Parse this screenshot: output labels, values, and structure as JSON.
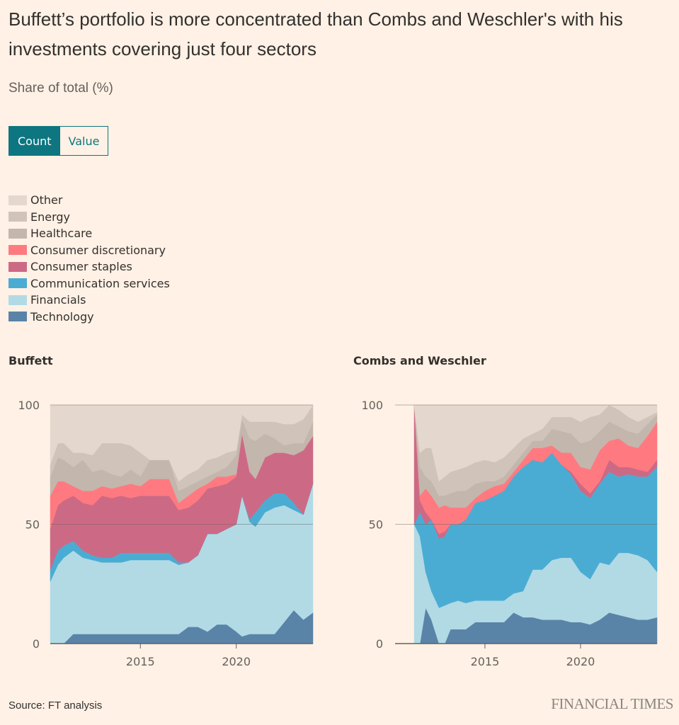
{
  "title": "Buffett’s portfolio is more concentrated than Combs and Weschler's with his investments covering just four sectors",
  "subtitle": "Share of total (%)",
  "toggle": {
    "options": [
      "Count",
      "Value"
    ],
    "selected": "Count"
  },
  "legend": [
    {
      "label": "Other",
      "color": "#e4d8ce"
    },
    {
      "label": "Energy",
      "color": "#d0c3b9"
    },
    {
      "label": "Healthcare",
      "color": "#c3b6ad"
    },
    {
      "label": "Consumer discretionary",
      "color": "#ff7a80"
    },
    {
      "label": "Consumer staples",
      "color": "#cc6a86"
    },
    {
      "label": "Communication services",
      "color": "#4bacd3"
    },
    {
      "label": "Financials",
      "color": "#b1dae5"
    },
    {
      "label": "Technology",
      "color": "#5a83a8"
    }
  ],
  "source": "Source: FT analysis",
  "brand": "FINANCIAL TIMES",
  "chart_data": [
    {
      "type": "area",
      "stacked": true,
      "title": "Buffett",
      "ylabel": "Share of total (%)",
      "ylim": [
        0,
        100
      ],
      "yticks": [
        0,
        50,
        100
      ],
      "xticks": [
        2015,
        2020
      ],
      "xlim": [
        2010.3,
        2024.0
      ],
      "grid": true,
      "x": [
        2010.3,
        2010.7,
        2011.0,
        2011.5,
        2012.0,
        2012.5,
        2013.0,
        2013.5,
        2014.0,
        2014.5,
        2015.0,
        2015.5,
        2016.0,
        2016.5,
        2017.0,
        2017.5,
        2018.0,
        2018.5,
        2019.0,
        2019.5,
        2020.0,
        2020.3,
        2020.7,
        2021.0,
        2021.5,
        2022.0,
        2022.5,
        2023.0,
        2023.5,
        2024.0
      ],
      "series": [
        {
          "name": "Technology",
          "values": [
            0,
            0,
            0,
            4,
            4,
            4,
            4,
            4,
            4,
            4,
            4,
            4,
            4,
            4,
            4,
            7,
            7,
            5,
            8,
            8,
            5,
            3,
            4,
            4,
            4,
            4,
            9,
            14,
            10,
            13
          ]
        },
        {
          "name": "Financials",
          "values": [
            26,
            33,
            36,
            35,
            32,
            31,
            30,
            30,
            30,
            31,
            31,
            31,
            31,
            31,
            29,
            27,
            30,
            41,
            38,
            40,
            45,
            59,
            47,
            45,
            51,
            53,
            49,
            42,
            44,
            54
          ]
        },
        {
          "name": "Communication services",
          "values": [
            5,
            6,
            5,
            4,
            3,
            2,
            2,
            2,
            4,
            3,
            3,
            3,
            3,
            3,
            1,
            0,
            0,
            0,
            0,
            0,
            0,
            0,
            1,
            6,
            5,
            6,
            5,
            3,
            0,
            0
          ]
        },
        {
          "name": "Consumer staples",
          "values": [
            17,
            19,
            19,
            19,
            20,
            21,
            26,
            25,
            24,
            23,
            24,
            24,
            24,
            24,
            22,
            23,
            23,
            19,
            20,
            19,
            20,
            26,
            20,
            14,
            18,
            17,
            17,
            20,
            27,
            20
          ]
        },
        {
          "name": "Consumer discretionary",
          "values": [
            14,
            10,
            8,
            4,
            5,
            6,
            4,
            4,
            4,
            6,
            4,
            7,
            7,
            7,
            3,
            5,
            5,
            2,
            4,
            3,
            1,
            0,
            0,
            0,
            0,
            0,
            0,
            0,
            0,
            0
          ]
        },
        {
          "name": "Healthcare",
          "values": [
            8,
            10,
            9,
            8,
            13,
            8,
            7,
            6,
            4,
            6,
            4,
            8,
            8,
            8,
            5,
            4,
            3,
            3,
            2,
            4,
            8,
            6,
            14,
            16,
            10,
            6,
            3,
            5,
            3,
            6
          ]
        },
        {
          "name": "Energy",
          "values": [
            5,
            6,
            7,
            6,
            3,
            7,
            11,
            13,
            14,
            10,
            10,
            0,
            0,
            0,
            4,
            5,
            5,
            7,
            6,
            6,
            2,
            2,
            7,
            8,
            5,
            7,
            9,
            8,
            10,
            7
          ]
        },
        {
          "name": "Other",
          "values": [
            25,
            16,
            16,
            20,
            20,
            21,
            16,
            16,
            16,
            17,
            20,
            23,
            23,
            23,
            32,
            29,
            27,
            23,
            22,
            20,
            19,
            4,
            7,
            7,
            7,
            7,
            8,
            8,
            6,
            0
          ]
        }
      ]
    },
    {
      "type": "area",
      "stacked": true,
      "title": "Combs and Weschler",
      "ylabel": "Share of total (%)",
      "ylim": [
        0,
        100
      ],
      "yticks": [
        0,
        50,
        100
      ],
      "xticks": [
        2015,
        2020
      ],
      "xlim": [
        2010.3,
        2024.0
      ],
      "grid": true,
      "x": [
        2011.3,
        2011.6,
        2011.9,
        2012.2,
        2012.6,
        2012.9,
        2013.2,
        2013.6,
        2014.0,
        2014.5,
        2015.0,
        2015.5,
        2016.0,
        2016.5,
        2017.0,
        2017.5,
        2018.0,
        2018.5,
        2019.0,
        2019.5,
        2020.0,
        2020.5,
        2021.0,
        2021.5,
        2022.0,
        2022.5,
        2023.0,
        2023.5,
        2024.0
      ],
      "series": [
        {
          "name": "Technology",
          "values": [
            0,
            0,
            15,
            10,
            0,
            0,
            6,
            6,
            6,
            9,
            9,
            9,
            9,
            13,
            11,
            11,
            10,
            10,
            10,
            9,
            9,
            8,
            10,
            13,
            12,
            11,
            10,
            10,
            11
          ]
        },
        {
          "name": "Financials",
          "values": [
            50,
            45,
            15,
            12,
            15,
            16,
            11,
            12,
            11,
            9,
            9,
            9,
            9,
            8,
            11,
            20,
            21,
            25,
            26,
            27,
            21,
            19,
            24,
            20,
            26,
            27,
            27,
            25,
            19
          ]
        },
        {
          "name": "Communication services",
          "values": [
            0,
            10,
            20,
            30,
            29,
            29,
            33,
            32,
            35,
            41,
            42,
            44,
            46,
            49,
            52,
            46,
            45,
            45,
            39,
            35,
            34,
            34,
            33,
            39,
            32,
            33,
            33,
            35,
            44
          ]
        },
        {
          "name": "Consumer staples",
          "values": [
            50,
            5,
            5,
            0,
            2,
            2,
            0,
            0,
            0,
            0,
            0,
            0,
            0,
            0,
            0,
            0,
            0,
            0,
            0,
            1,
            3,
            2,
            1,
            5,
            4,
            3,
            3,
            2,
            3
          ]
        },
        {
          "name": "Consumer discretionary",
          "values": [
            0,
            2,
            10,
            10,
            11,
            11,
            7,
            7,
            5,
            2,
            4,
            4,
            3,
            2,
            3,
            5,
            6,
            3,
            5,
            8,
            7,
            10,
            13,
            8,
            12,
            9,
            9,
            15,
            16
          ]
        },
        {
          "name": "Healthcare",
          "values": [
            0,
            12,
            5,
            6,
            5,
            4,
            6,
            7,
            7,
            6,
            4,
            2,
            3,
            3,
            3,
            3,
            3,
            7,
            9,
            8,
            10,
            12,
            8,
            8,
            5,
            6,
            6,
            5,
            3
          ]
        },
        {
          "name": "Energy",
          "values": [
            0,
            6,
            12,
            14,
            6,
            8,
            9,
            9,
            10,
            9,
            9,
            8,
            8,
            7,
            6,
            3,
            5,
            5,
            6,
            7,
            9,
            10,
            7,
            7,
            7,
            6,
            5,
            3,
            1
          ]
        },
        {
          "name": "Other",
          "values": [
            0,
            20,
            18,
            18,
            32,
            30,
            28,
            27,
            26,
            24,
            23,
            24,
            22,
            18,
            14,
            12,
            10,
            5,
            5,
            5,
            7,
            5,
            4,
            0,
            2,
            5,
            7,
            5,
            3
          ]
        }
      ]
    }
  ]
}
